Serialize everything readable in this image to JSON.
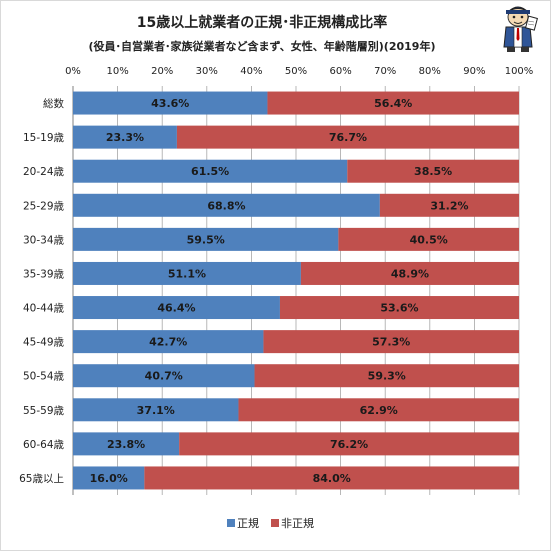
{
  "chart_data": {
    "type": "bar",
    "orientation": "horizontal",
    "stacked": "percent",
    "title": "15歳以上就業者の正規･非正規構成比率",
    "subtitle": "(役員･自営業者･家族従業者など含まず、女性、年齢階層別)(2019年)",
    "xlabel": "",
    "ylabel": "",
    "xlim": [
      0,
      100
    ],
    "x_ticks": [
      "0%",
      "10%",
      "20%",
      "30%",
      "40%",
      "50%",
      "60%",
      "70%",
      "80%",
      "90%",
      "100%"
    ],
    "categories": [
      "総数",
      "15-19歳",
      "20-24歳",
      "25-29歳",
      "30-34歳",
      "35-39歳",
      "40-44歳",
      "45-49歳",
      "50-54歳",
      "55-59歳",
      "60-64歳",
      "65歳以上"
    ],
    "series": [
      {
        "name": "正規",
        "color": "#4f81bd",
        "values": [
          43.6,
          23.3,
          61.5,
          68.8,
          59.5,
          51.1,
          46.4,
          42.7,
          40.7,
          37.1,
          23.8,
          16.0
        ],
        "labels": [
          "43.6%",
          "23.3%",
          "61.5%",
          "68.8%",
          "59.5%",
          "51.1%",
          "46.4%",
          "42.7%",
          "40.7%",
          "37.1%",
          "23.8%",
          "16.0%"
        ]
      },
      {
        "name": "非正規",
        "color": "#c0504d",
        "values": [
          56.4,
          76.7,
          38.5,
          31.2,
          40.5,
          48.9,
          53.6,
          57.3,
          59.3,
          62.9,
          76.2,
          84.0
        ],
        "labels": [
          "56.4%",
          "76.7%",
          "38.5%",
          "31.2%",
          "40.5%",
          "48.9%",
          "53.6%",
          "57.3%",
          "59.3%",
          "62.9%",
          "76.2%",
          "84.0%"
        ]
      }
    ],
    "grid": true,
    "legend_position": "bottom"
  },
  "icons": {
    "mascot": "mascot-character-icon"
  }
}
